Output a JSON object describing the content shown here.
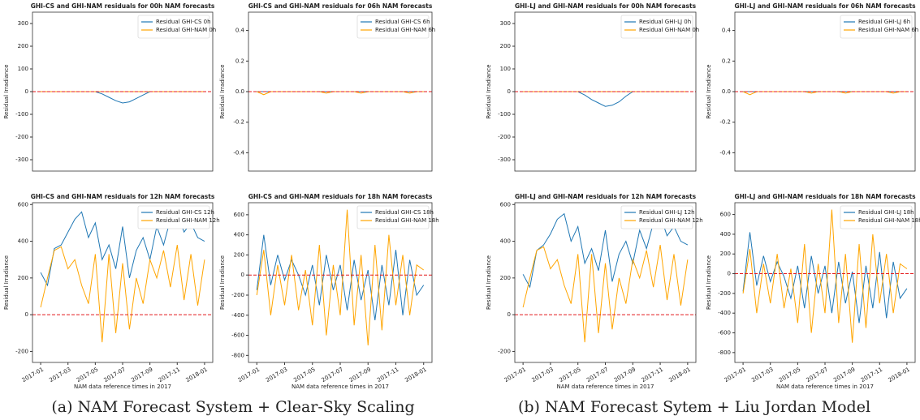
{
  "chart_data": [
    {
      "type": "line",
      "title": "GHI-CS and GHI-NAM residuals for 00h NAM forecasts",
      "ylabel": "Residual Irradiance",
      "x": [
        0,
        0.5,
        1,
        1.5,
        2,
        2.5,
        3,
        3.5,
        4,
        4.5,
        5,
        5.5,
        6,
        6.5,
        7,
        7.5,
        8,
        8.5,
        9,
        9.5,
        10,
        10.5,
        11,
        11.5,
        12
      ],
      "series": [
        {
          "name": "Residual GHI-CS 0h",
          "color": "#1f77b4",
          "values": [
            0,
            0,
            0,
            0,
            0,
            0,
            0,
            0,
            0,
            -10,
            -25,
            -40,
            -50,
            -45,
            -30,
            -15,
            0,
            0,
            0,
            0,
            0,
            0,
            0,
            0,
            0
          ]
        },
        {
          "name": "Residual GHI-NAM 0h",
          "color": "#ffa500",
          "values": [
            0,
            0,
            0,
            0,
            0,
            0,
            0,
            0,
            0,
            0,
            0,
            0,
            0,
            0,
            0,
            0,
            0,
            0,
            0,
            0,
            0,
            0,
            0,
            0,
            0
          ]
        }
      ],
      "xlim": [
        -0.6,
        12.6
      ],
      "ylim": [
        -350,
        350
      ],
      "yticks": [
        -300,
        -200,
        -100,
        0,
        100,
        200,
        300
      ],
      "reference_line": 0,
      "reference_color": "#e41a1c",
      "legend": "upper right"
    },
    {
      "type": "line",
      "title": "GHI-CS and GHI-NAM residuals for 06h NAM forecasts",
      "ylabel": "Residual Irradiance",
      "x": [
        0,
        0.5,
        1,
        1.5,
        2,
        2.5,
        3,
        3.5,
        4,
        4.5,
        5,
        5.5,
        6,
        6.5,
        7,
        7.5,
        8,
        8.5,
        9,
        9.5,
        10,
        10.5,
        11,
        11.5,
        12
      ],
      "series": [
        {
          "name": "Residual GHI-CS 6h",
          "color": "#1f77b4",
          "values": [
            0,
            0,
            0,
            0,
            0,
            0,
            0,
            0,
            0,
            0,
            0,
            0,
            0,
            0,
            0,
            0,
            0,
            0,
            0,
            0,
            0,
            0,
            0,
            0,
            0
          ]
        },
        {
          "name": "Residual GHI-NAM 6h",
          "color": "#ffa500",
          "values": [
            0,
            -0.02,
            0,
            0,
            0,
            0,
            0,
            0,
            0,
            0,
            -0.01,
            0,
            0,
            0,
            0,
            -0.01,
            0,
            0,
            0,
            0,
            0,
            0,
            -0.01,
            0,
            0
          ]
        }
      ],
      "xlim": [
        -0.6,
        12.6
      ],
      "ylim": [
        -0.52,
        0.52
      ],
      "yticks": [
        -0.4,
        -0.2,
        {
          "value": 0,
          "label": "0.0"
        },
        0.2,
        0.4
      ],
      "reference_line": 0,
      "reference_color": "#e41a1c",
      "legend": "upper right"
    },
    {
      "type": "line",
      "title": "GHI-CS and GHI-NAM residuals for 12h NAM forecasts",
      "ylabel": "Residual Irradiance",
      "xlabel": "NAM data reference times in 2017",
      "x": [
        0,
        0.5,
        1,
        1.5,
        2,
        2.5,
        3,
        3.5,
        4,
        4.5,
        5,
        5.5,
        6,
        6.5,
        7,
        7.5,
        8,
        8.5,
        9,
        9.5,
        10,
        10.5,
        11,
        11.5,
        12
      ],
      "series": [
        {
          "name": "Residual GHI-CS 12h",
          "color": "#1f77b4",
          "values": [
            230,
            160,
            360,
            380,
            450,
            520,
            560,
            420,
            500,
            300,
            380,
            250,
            480,
            200,
            350,
            420,
            300,
            480,
            380,
            520,
            550,
            450,
            500,
            420,
            400
          ]
        },
        {
          "name": "Residual GHI-NAM 12h",
          "color": "#ffa500",
          "values": [
            40,
            200,
            350,
            370,
            250,
            300,
            160,
            60,
            330,
            -150,
            330,
            -100,
            280,
            -80,
            200,
            60,
            300,
            200,
            350,
            150,
            380,
            80,
            330,
            50,
            300
          ]
        }
      ],
      "xlim": [
        -0.6,
        12.6
      ],
      "ylim": [
        -260,
        610
      ],
      "yticks": [
        -200,
        0,
        200,
        400,
        600
      ],
      "xticks": [
        {
          "value": 0,
          "label": "2017-01"
        },
        {
          "value": 2,
          "label": "2017-03"
        },
        {
          "value": 4,
          "label": "2017-05"
        },
        {
          "value": 6,
          "label": "2017-07"
        },
        {
          "value": 8,
          "label": "2017-09"
        },
        {
          "value": 10,
          "label": "2017-11"
        },
        {
          "value": 12,
          "label": "2018-01"
        }
      ],
      "reference_line": 0,
      "reference_color": "#e41a1c",
      "legend": "upper right"
    },
    {
      "type": "line",
      "title": "GHI-CS and GHI-NAM residuals for 18h NAM forecasts",
      "ylabel": "Residual Irradiance",
      "xlabel": "NAM data reference times in 2017",
      "x": [
        0,
        0.5,
        1,
        1.5,
        2,
        2.5,
        3,
        3.5,
        4,
        4.5,
        5,
        5.5,
        6,
        6.5,
        7,
        7.5,
        8,
        8.5,
        9,
        9.5,
        10,
        10.5,
        11,
        11.5,
        12
      ],
      "series": [
        {
          "name": "Residual GHI-CS 18h",
          "color": "#1f77b4",
          "values": [
            -150,
            400,
            -100,
            200,
            -50,
            150,
            0,
            -200,
            100,
            -300,
            200,
            -150,
            100,
            -350,
            150,
            -250,
            50,
            -450,
            100,
            -300,
            250,
            -400,
            150,
            -200,
            -100
          ]
        },
        {
          "name": "Residual GHI-NAM 18h",
          "color": "#ffa500",
          "values": [
            -200,
            250,
            -400,
            100,
            -300,
            200,
            -350,
            50,
            -500,
            300,
            -600,
            100,
            -400,
            650,
            -500,
            200,
            -700,
            300,
            -550,
            400,
            -300,
            200,
            -400,
            100,
            50
          ]
        }
      ],
      "xlim": [
        -0.6,
        12.6
      ],
      "ylim": [
        -870,
        720
      ],
      "yticks": [
        -800,
        -600,
        -400,
        -200,
        0,
        200,
        400,
        600
      ],
      "xticks": [
        {
          "value": 0,
          "label": "2017-01"
        },
        {
          "value": 2,
          "label": "2017-03"
        },
        {
          "value": 4,
          "label": "2017-05"
        },
        {
          "value": 6,
          "label": "2017-07"
        },
        {
          "value": 8,
          "label": "2017-09"
        },
        {
          "value": 10,
          "label": "2017-11"
        },
        {
          "value": 12,
          "label": "2018-01"
        }
      ],
      "reference_line": 0,
      "reference_color": "#e41a1c",
      "legend": "upper right"
    },
    {
      "type": "line",
      "title": "GHI-LJ and GHI-NAM residuals for 00h NAM forecasts",
      "ylabel": "Residual Irradiance",
      "x": [
        0,
        0.5,
        1,
        1.5,
        2,
        2.5,
        3,
        3.5,
        4,
        4.5,
        5,
        5.5,
        6,
        6.5,
        7,
        7.5,
        8,
        8.5,
        9,
        9.5,
        10,
        10.5,
        11,
        11.5,
        12
      ],
      "series": [
        {
          "name": "Residual GHI-LJ 0h",
          "color": "#1f77b4",
          "values": [
            0,
            0,
            0,
            0,
            0,
            0,
            0,
            0,
            0,
            -15,
            -35,
            -50,
            -65,
            -60,
            -45,
            -20,
            0,
            0,
            0,
            0,
            0,
            0,
            0,
            0,
            0
          ]
        },
        {
          "name": "Residual GHI-NAM 0h",
          "color": "#ffa500",
          "values": [
            0,
            0,
            0,
            0,
            0,
            0,
            0,
            0,
            0,
            0,
            0,
            0,
            0,
            0,
            0,
            0,
            0,
            0,
            0,
            0,
            0,
            0,
            0,
            0,
            0
          ]
        }
      ],
      "xlim": [
        -0.6,
        12.6
      ],
      "ylim": [
        -350,
        350
      ],
      "yticks": [
        -300,
        -200,
        -100,
        0,
        100,
        200,
        300
      ],
      "reference_line": 0,
      "reference_color": "#e41a1c",
      "legend": "upper right"
    },
    {
      "type": "line",
      "title": "GHI-LJ and GHI-NAM residuals for 06h NAM forecasts",
      "ylabel": "Residual Irradiance",
      "x": [
        0,
        0.5,
        1,
        1.5,
        2,
        2.5,
        3,
        3.5,
        4,
        4.5,
        5,
        5.5,
        6,
        6.5,
        7,
        7.5,
        8,
        8.5,
        9,
        9.5,
        10,
        10.5,
        11,
        11.5,
        12
      ],
      "series": [
        {
          "name": "Residual GHI-LJ 6h",
          "color": "#1f77b4",
          "values": [
            0,
            0,
            0,
            0,
            0,
            0,
            0,
            0,
            0,
            0,
            0,
            0,
            0,
            0,
            0,
            0,
            0,
            0,
            0,
            0,
            0,
            0,
            0,
            0,
            0
          ]
        },
        {
          "name": "Residual GHI-NAM 6h",
          "color": "#ffa500",
          "values": [
            0,
            -0.02,
            0,
            0,
            0,
            0,
            0,
            0,
            0,
            0,
            -0.01,
            0,
            0,
            0,
            0,
            -0.01,
            0,
            0,
            0,
            0,
            0,
            0,
            -0.01,
            0,
            0
          ]
        }
      ],
      "xlim": [
        -0.6,
        12.6
      ],
      "ylim": [
        -0.52,
        0.52
      ],
      "yticks": [
        -0.4,
        -0.2,
        {
          "value": 0,
          "label": "0.0"
        },
        0.2,
        0.4
      ],
      "reference_line": 0,
      "reference_color": "#e41a1c",
      "legend": "upper right"
    },
    {
      "type": "line",
      "title": "GHI-LJ and GHI-NAM residuals for 12h NAM forecasts",
      "ylabel": "Residual Irradiance",
      "xlabel": "NAM data reference times in 2017",
      "x": [
        0,
        0.5,
        1,
        1.5,
        2,
        2.5,
        3,
        3.5,
        4,
        4.5,
        5,
        5.5,
        6,
        6.5,
        7,
        7.5,
        8,
        8.5,
        9,
        9.5,
        10,
        10.5,
        11,
        11.5,
        12
      ],
      "series": [
        {
          "name": "Residual GHI-LJ 12h",
          "color": "#1f77b4",
          "values": [
            220,
            150,
            350,
            380,
            440,
            520,
            550,
            400,
            480,
            280,
            360,
            240,
            460,
            180,
            330,
            400,
            280,
            460,
            360,
            500,
            540,
            430,
            480,
            400,
            380
          ]
        },
        {
          "name": "Residual GHI-NAM 12h",
          "color": "#ffa500",
          "values": [
            40,
            200,
            350,
            370,
            250,
            300,
            160,
            60,
            330,
            -150,
            330,
            -100,
            280,
            -80,
            200,
            60,
            300,
            200,
            350,
            150,
            380,
            80,
            330,
            50,
            300
          ]
        }
      ],
      "xlim": [
        -0.6,
        12.6
      ],
      "ylim": [
        -260,
        610
      ],
      "yticks": [
        -200,
        0,
        200,
        400,
        600
      ],
      "xticks": [
        {
          "value": 0,
          "label": "2017-01"
        },
        {
          "value": 2,
          "label": "2017-03"
        },
        {
          "value": 4,
          "label": "2017-05"
        },
        {
          "value": 6,
          "label": "2017-07"
        },
        {
          "value": 8,
          "label": "2017-09"
        },
        {
          "value": 10,
          "label": "2017-11"
        },
        {
          "value": 12,
          "label": "2018-01"
        }
      ],
      "reference_line": 0,
      "reference_color": "#e41a1c",
      "legend": "upper right"
    },
    {
      "type": "line",
      "title": "GHI-LJ and GHI-NAM residuals for 18h NAM forecasts",
      "ylabel": "Residual Irradiance",
      "xlabel": "NAM data reference times in 2017",
      "x": [
        0,
        0.5,
        1,
        1.5,
        2,
        2.5,
        3,
        3.5,
        4,
        4.5,
        5,
        5.5,
        6,
        6.5,
        7,
        7.5,
        8,
        8.5,
        9,
        9.5,
        10,
        10.5,
        11,
        11.5,
        12
      ],
      "series": [
        {
          "name": "Residual GHI-LJ 18h",
          "color": "#1f77b4",
          "values": [
            -180,
            420,
            -120,
            180,
            -80,
            120,
            -30,
            -250,
            80,
            -350,
            180,
            -200,
            80,
            -400,
            120,
            -300,
            20,
            -500,
            80,
            -350,
            220,
            -450,
            120,
            -250,
            -150
          ]
        },
        {
          "name": "Residual GHI-NAM 18h",
          "color": "#ffa500",
          "values": [
            -200,
            250,
            -400,
            100,
            -300,
            200,
            -350,
            50,
            -500,
            300,
            -600,
            100,
            -400,
            650,
            -500,
            200,
            -700,
            300,
            -550,
            400,
            -300,
            200,
            -400,
            100,
            50
          ]
        }
      ],
      "xlim": [
        -0.6,
        12.6
      ],
      "ylim": [
        -900,
        720
      ],
      "yticks": [
        -800,
        -600,
        -400,
        -200,
        0,
        200,
        400,
        600
      ],
      "xticks": [
        {
          "value": 0,
          "label": "2017-01"
        },
        {
          "value": 2,
          "label": "2017-03"
        },
        {
          "value": 4,
          "label": "2017-05"
        },
        {
          "value": 6,
          "label": "2017-07"
        },
        {
          "value": 8,
          "label": "2017-09"
        },
        {
          "value": 10,
          "label": "2017-11"
        },
        {
          "value": 12,
          "label": "2018-01"
        }
      ],
      "reference_line": 0,
      "reference_color": "#e41a1c",
      "legend": "upper right"
    }
  ],
  "captions": [
    "(a) NAM Forecast System + Clear-Sky Scaling",
    "(b) NAM Forecast Sytem + Liu Jordan Model"
  ]
}
